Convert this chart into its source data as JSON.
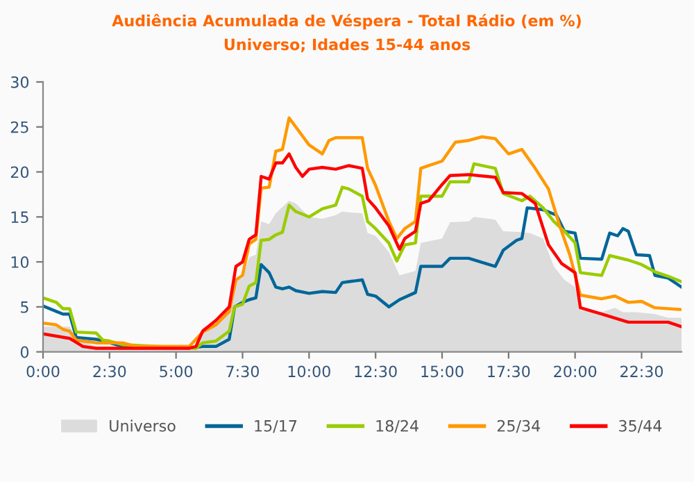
{
  "chart_data": {
    "type": "line",
    "title": "Audiência Acumulada de Véspera - Total Rádio (em %)",
    "subtitle": "Universo; Idades 15-44 anos",
    "xlim": [
      0,
      24
    ],
    "xticks": [
      {
        "value": 0,
        "label": "0:00"
      },
      {
        "value": 2.5,
        "label": "2:30"
      },
      {
        "value": 5,
        "label": "5:00"
      },
      {
        "value": 7.5,
        "label": "7:30"
      },
      {
        "value": 10,
        "label": "10:00"
      },
      {
        "value": 12.5,
        "label": "12:30"
      },
      {
        "value": 15,
        "label": "15:00"
      },
      {
        "value": 17.5,
        "label": "17:30"
      },
      {
        "value": 20,
        "label": "20:00"
      },
      {
        "value": 22.5,
        "label": "22:30"
      }
    ],
    "ylim": [
      0,
      30
    ],
    "yticks": [
      0,
      5,
      10,
      15,
      20,
      25,
      30
    ],
    "grid": false,
    "legend": "bottom",
    "marker": "none",
    "line_style": "solid",
    "series": [
      {
        "name": "Universo",
        "type": "area",
        "color": "#dcdcdc",
        "x": [
          0,
          1,
          1.25,
          2,
          5,
          5.75,
          6,
          6.5,
          7,
          7.25,
          7.5,
          7.75,
          8,
          8.2,
          8.5,
          8.75,
          9.25,
          9.5,
          10,
          10.5,
          11,
          11.25,
          11.5,
          12,
          12.2,
          12.5,
          13,
          13.4,
          14,
          14.2,
          15,
          15.3,
          16,
          16.2,
          17,
          17.3,
          18,
          18.3,
          18.8,
          19.2,
          19.6,
          20,
          20.2,
          21,
          21.5,
          21.8,
          22.3,
          23,
          23.5,
          24
        ],
        "values": [
          2.8,
          2.8,
          1.5,
          0.6,
          0.6,
          0.6,
          2.7,
          3,
          4.5,
          8.2,
          8.2,
          10.5,
          10.8,
          14.5,
          14.2,
          15.4,
          16.8,
          16.5,
          15,
          14.8,
          15.2,
          15.6,
          15.5,
          15.4,
          13.2,
          12.9,
          11.1,
          8.5,
          9,
          12.1,
          12.6,
          14.4,
          14.5,
          15,
          14.7,
          13.4,
          13.3,
          13.2,
          12.6,
          9.5,
          8,
          7.2,
          4.6,
          4.4,
          4.9,
          4.4,
          4.4,
          4.2,
          3.8,
          3.8
        ]
      },
      {
        "name": "15/17",
        "color": "#006699",
        "x": [
          0,
          0.5,
          0.75,
          1,
          1.25,
          2,
          2.5,
          3,
          5,
          5.75,
          6,
          6.5,
          7,
          7.2,
          7.5,
          7.75,
          8,
          8.2,
          8.5,
          8.75,
          9,
          9.25,
          9.5,
          10,
          10.5,
          11,
          11.25,
          11.5,
          12,
          12.2,
          12.5,
          13,
          13.4,
          14,
          14.2,
          15,
          15.3,
          16,
          17,
          17.3,
          17.8,
          18,
          18.2,
          18.8,
          19.3,
          19.6,
          20,
          20.2,
          21,
          21.3,
          21.6,
          21.8,
          22,
          22.3,
          22.8,
          23,
          23.5,
          24
        ],
        "values": [
          5.1,
          4.5,
          4.2,
          4.2,
          1.6,
          1.4,
          1,
          0.6,
          0.5,
          0.5,
          0.6,
          0.6,
          1.4,
          5,
          5.5,
          5.8,
          6,
          9.7,
          8.8,
          7.2,
          7,
          7.2,
          6.8,
          6.5,
          6.7,
          6.6,
          7.7,
          7.8,
          8,
          6.4,
          6.2,
          5,
          5.8,
          6.6,
          9.5,
          9.5,
          10.4,
          10.4,
          9.5,
          11.3,
          12.4,
          12.6,
          16,
          15.8,
          15.2,
          13.4,
          13.2,
          10.4,
          10.3,
          13.2,
          12.9,
          13.7,
          13.4,
          10.8,
          10.7,
          8.5,
          8.2,
          7.2
        ]
      },
      {
        "name": "18/24",
        "color": "#99cc00",
        "x": [
          0,
          0.5,
          0.75,
          1,
          1.25,
          2,
          2.25,
          2.5,
          3,
          5,
          5.75,
          6,
          6.5,
          7,
          7.2,
          7.5,
          7.75,
          8,
          8.2,
          8.5,
          8.75,
          9,
          9.25,
          9.5,
          10,
          10.5,
          11,
          11.25,
          11.5,
          12,
          12.2,
          12.5,
          13,
          13.3,
          13.6,
          14,
          14.2,
          15,
          15.3,
          16,
          16.2,
          17,
          17.3,
          18,
          18.3,
          18.8,
          19.2,
          19.6,
          20,
          20.2,
          21,
          21.3,
          22,
          22.5,
          23,
          23.5,
          24
        ],
        "values": [
          6,
          5.5,
          4.8,
          4.8,
          2.2,
          2.1,
          1.3,
          1.2,
          0.8,
          0.5,
          0.4,
          1,
          1.2,
          2.3,
          5,
          5.3,
          7.3,
          7.7,
          12.4,
          12.5,
          13,
          13.3,
          16.3,
          15.6,
          15,
          15.9,
          16.3,
          18.3,
          18.1,
          17.3,
          14.5,
          13.7,
          12.1,
          10.1,
          11.9,
          12.1,
          17.3,
          17.3,
          18.9,
          18.9,
          20.9,
          20.4,
          17.6,
          16.8,
          17.3,
          16,
          14.5,
          13.4,
          12.1,
          8.8,
          8.5,
          10.7,
          10.2,
          9.7,
          8.9,
          8.4,
          7.8
        ]
      },
      {
        "name": "25/34",
        "color": "#ff9900",
        "x": [
          0,
          0.5,
          0.75,
          1,
          1.25,
          2,
          3,
          3.5,
          5.5,
          6,
          6.5,
          7,
          7.25,
          7.5,
          7.75,
          8,
          8.2,
          8.5,
          8.75,
          9,
          9.25,
          9.5,
          10,
          10.5,
          10.75,
          11,
          12,
          12.2,
          12.5,
          13,
          13.3,
          13.6,
          14,
          14.2,
          14.5,
          15,
          15.5,
          16,
          16.5,
          17,
          17.5,
          18,
          18.5,
          19,
          19.4,
          19.8,
          20.2,
          21,
          21.5,
          22,
          22.5,
          23,
          24
        ],
        "values": [
          3.2,
          3,
          2.5,
          2.3,
          1.3,
          1,
          1,
          0.6,
          0.6,
          2.2,
          3,
          4.5,
          8,
          8.5,
          12,
          12.5,
          18.2,
          18.3,
          22.3,
          22.5,
          26,
          25,
          23,
          22,
          23.5,
          23.8,
          23.8,
          20.4,
          18.5,
          14.5,
          12.6,
          13.7,
          14.5,
          20.4,
          20.7,
          21.2,
          23.3,
          23.5,
          23.9,
          23.7,
          22,
          22.5,
          20.4,
          18.1,
          14.2,
          10.8,
          6.3,
          5.9,
          6.2,
          5.5,
          5.6,
          4.9,
          4.7
        ]
      },
      {
        "name": "35/44",
        "color": "#ff0000",
        "x": [
          0,
          1,
          1.5,
          2,
          5.5,
          5.75,
          6,
          6.5,
          7,
          7.25,
          7.5,
          7.75,
          8,
          8.2,
          8.5,
          8.75,
          9,
          9.25,
          9.5,
          9.75,
          10,
          10.5,
          11,
          11.5,
          12,
          12.2,
          12.5,
          13,
          13.4,
          13.6,
          14,
          14.2,
          14.5,
          15,
          15.3,
          16,
          17,
          17.3,
          18,
          18.5,
          19,
          19.5,
          20,
          20.2,
          21,
          22,
          23,
          23.5,
          24
        ],
        "values": [
          2,
          1.5,
          0.6,
          0.4,
          0.4,
          0.6,
          2.3,
          3.5,
          5,
          9.5,
          10,
          12.5,
          13,
          19.5,
          19.2,
          21,
          21,
          22,
          20.5,
          19.5,
          20.3,
          20.5,
          20.3,
          20.7,
          20.4,
          17,
          16,
          14,
          11.4,
          12.6,
          13.4,
          16.5,
          16.8,
          18.6,
          19.6,
          19.7,
          19.4,
          17.7,
          17.6,
          16.5,
          11.9,
          9.8,
          8.8,
          4.9,
          4.2,
          3.3,
          3.3,
          3.3,
          2.8
        ]
      }
    ]
  }
}
